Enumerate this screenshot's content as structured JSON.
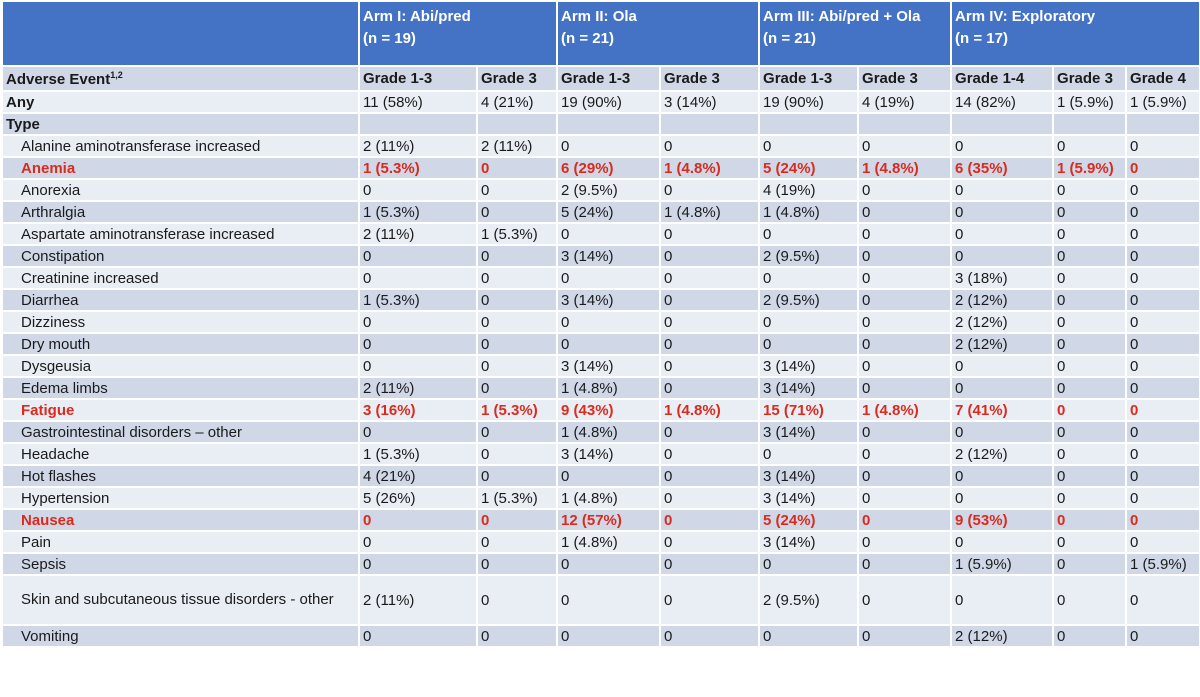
{
  "header": {
    "arms": [
      {
        "title": "Arm I: Abi/pred",
        "n": "(n = 19)"
      },
      {
        "title": "Arm II: Ola",
        "n": "(n = 21)"
      },
      {
        "title": "Arm III: Abi/pred + Ola",
        "n": "(n = 21)"
      },
      {
        "title": "Arm IV: Exploratory",
        "n": "(n = 17)"
      }
    ]
  },
  "subheader": {
    "label": "Adverse Event",
    "label_sup": "1,2",
    "grades": [
      "Grade 1-3",
      "Grade 3",
      "Grade 1-3",
      "Grade 3",
      "Grade 1-3",
      "Grade 3",
      "Grade 1-4",
      "Grade 3",
      "Grade 4"
    ]
  },
  "any": {
    "label": "Any",
    "values": [
      "11 (58%)",
      "4 (21%)",
      "19 (90%)",
      "3 (14%)",
      "19 (90%)",
      "4 (19%)",
      "14 (82%)",
      "1 (5.9%)",
      "1 (5.9%)"
    ]
  },
  "type_label": "Type",
  "rows": [
    {
      "label": "Alanine aminotransferase increased",
      "values": [
        "2 (11%)",
        "2 (11%)",
        "0",
        "0",
        "0",
        "0",
        "0",
        "0",
        "0"
      ]
    },
    {
      "label": "Anemia",
      "highlight": true,
      "values": [
        "1 (5.3%)",
        "0",
        "6 (29%)",
        "1 (4.8%)",
        "5 (24%)",
        "1 (4.8%)",
        "6 (35%)",
        "1 (5.9%)",
        "0"
      ]
    },
    {
      "label": "Anorexia",
      "values": [
        "0",
        "0",
        "2 (9.5%)",
        "0",
        "4 (19%)",
        "0",
        "0",
        "0",
        "0"
      ]
    },
    {
      "label": "Arthralgia",
      "values": [
        "1 (5.3%)",
        "0",
        "5 (24%)",
        "1 (4.8%)",
        "1 (4.8%)",
        "0",
        "0",
        "0",
        "0"
      ]
    },
    {
      "label": "Aspartate aminotransferase increased",
      "values": [
        "2 (11%)",
        "1 (5.3%)",
        "0",
        "0",
        "0",
        "0",
        "0",
        "0",
        "0"
      ]
    },
    {
      "label": "Constipation",
      "values": [
        "0",
        "0",
        "3 (14%)",
        "0",
        "2 (9.5%)",
        "0",
        "0",
        "0",
        "0"
      ]
    },
    {
      "label": "Creatinine increased",
      "values": [
        "0",
        "0",
        "0",
        "0",
        "0",
        "0",
        "3 (18%)",
        "0",
        "0"
      ]
    },
    {
      "label": "Diarrhea",
      "values": [
        "1 (5.3%)",
        "0",
        "3 (14%)",
        "0",
        "2 (9.5%)",
        "0",
        "2 (12%)",
        "0",
        "0"
      ]
    },
    {
      "label": "Dizziness",
      "values": [
        "0",
        "0",
        "0",
        "0",
        "0",
        "0",
        "2 (12%)",
        "0",
        "0"
      ]
    },
    {
      "label": "Dry mouth",
      "values": [
        "0",
        "0",
        "0",
        "0",
        "0",
        "0",
        "2 (12%)",
        "0",
        "0"
      ]
    },
    {
      "label": "Dysgeusia",
      "values": [
        "0",
        "0",
        "3 (14%)",
        "0",
        "3 (14%)",
        "0",
        "0",
        "0",
        "0"
      ]
    },
    {
      "label": "Edema limbs",
      "values": [
        "2 (11%)",
        "0",
        "1 (4.8%)",
        "0",
        "3 (14%)",
        "0",
        "0",
        "0",
        "0"
      ]
    },
    {
      "label": "Fatigue",
      "highlight": true,
      "values": [
        "3 (16%)",
        "1 (5.3%)",
        "9 (43%)",
        "1 (4.8%)",
        "15 (71%)",
        "1 (4.8%)",
        "7 (41%)",
        "0",
        "0"
      ]
    },
    {
      "label": "Gastrointestinal disorders – other",
      "values": [
        "0",
        "0",
        "1 (4.8%)",
        "0",
        "3 (14%)",
        "0",
        "0",
        "0",
        "0"
      ]
    },
    {
      "label": "Headache",
      "values": [
        "1 (5.3%)",
        "0",
        "3 (14%)",
        "0",
        "0",
        "0",
        "2 (12%)",
        "0",
        "0"
      ]
    },
    {
      "label": "Hot flashes",
      "values": [
        "4 (21%)",
        "0",
        "0",
        "0",
        "3 (14%)",
        "0",
        "0",
        "0",
        "0"
      ]
    },
    {
      "label": "Hypertension",
      "values": [
        "5 (26%)",
        "1 (5.3%)",
        "1 (4.8%)",
        "0",
        "3 (14%)",
        "0",
        "0",
        "0",
        "0"
      ]
    },
    {
      "label": "Nausea",
      "highlight": true,
      "values": [
        "0",
        "0",
        "12 (57%)",
        "0",
        "5 (24%)",
        "0",
        "9 (53%)",
        "0",
        "0"
      ]
    },
    {
      "label": "Pain",
      "values": [
        "0",
        "0",
        "1 (4.8%)",
        "0",
        "3 (14%)",
        "0",
        "0",
        "0",
        "0"
      ]
    },
    {
      "label": "Sepsis",
      "values": [
        "0",
        "0",
        "0",
        "0",
        "0",
        "0",
        "1 (5.9%)",
        "0",
        "1 (5.9%)"
      ]
    },
    {
      "label": "Skin and subcutaneous tissue disorders - other",
      "tall": true,
      "values": [
        "2 (11%)",
        "0",
        "0",
        "0",
        "2 (9.5%)",
        "0",
        "0",
        "0",
        "0"
      ]
    },
    {
      "label": "Vomiting",
      "values": [
        "0",
        "0",
        "0",
        "0",
        "0",
        "0",
        "2 (12%)",
        "0",
        "0"
      ]
    }
  ]
}
